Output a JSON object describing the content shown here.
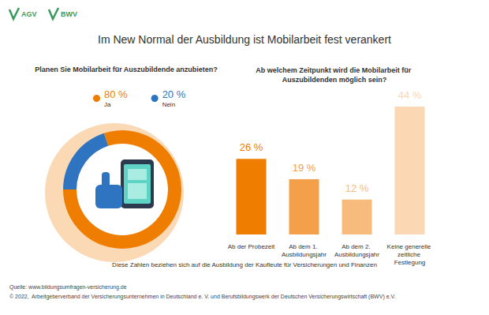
{
  "header": {
    "logos": [
      "AGV",
      "BWV"
    ],
    "title": "Im New Normal der Ausbildung ist Mobilarbeit fest verankert"
  },
  "chart_data": [
    {
      "type": "pie",
      "title": "Planen Sie Mobilarbeit für Auszubildende anzubieten?",
      "categories": [
        "Ja",
        "Nein"
      ],
      "values": [
        80,
        20
      ],
      "value_labels": [
        "80 %",
        "20 %"
      ],
      "colors": [
        "#ef7d00",
        "#2f74c0"
      ],
      "legend": "top"
    },
    {
      "type": "bar",
      "title": "Ab welchem Zeitpunkt wird die Mobilarbeit für Auszubildenden möglich sein?",
      "categories": [
        "Ab der Probezeit",
        "Ab dem 1. Ausbildungsjahr",
        "Ab dem 2. Ausbildungsjahr",
        "Keine generelle zeitliche Festlegung"
      ],
      "values": [
        26,
        19,
        12,
        44
      ],
      "value_labels": [
        "26 %",
        "19 %",
        "12 %",
        "44 %"
      ],
      "colors": [
        "#ef7d00",
        "#f4a04b",
        "#f8bb7e",
        "#fbd7b3"
      ],
      "ylim": [
        0,
        44
      ],
      "data_labels": true,
      "tick_labels": "x",
      "grid": false
    }
  ],
  "footer": {
    "note": "Diese Zahlen beziehen sich auf die Ausbildung der Kaufleute für Versicherungen und Finanzen",
    "source": "Quelle: www.bildungsumfragen-versicherung.de",
    "copyright": "© 2022,  Arbeitgeberverband der Versicherungsunternehmen in Deutschland e. V. und Berufsbildungswerk der Deutschen Versicherungswirtschaft (BWV) e.V."
  }
}
